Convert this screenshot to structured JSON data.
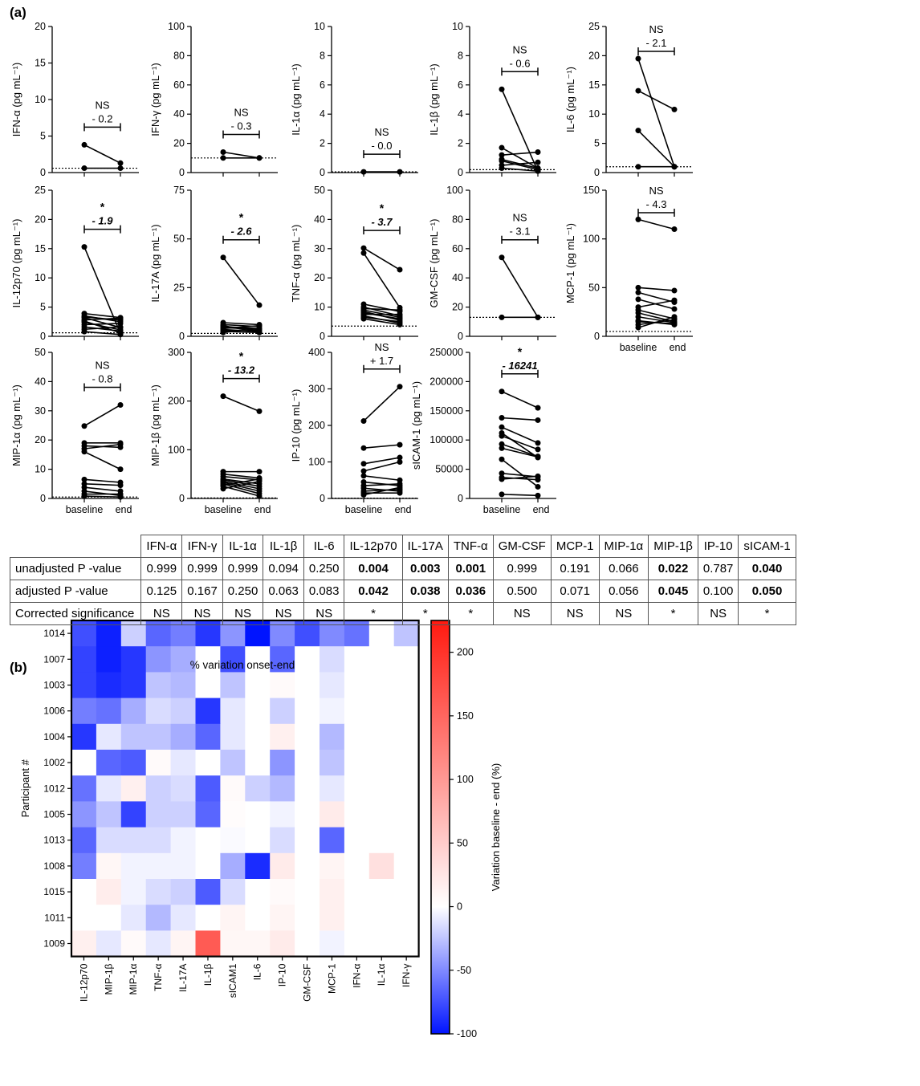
{
  "panel_a_label": "(a)",
  "panel_b_label": "(b)",
  "chart_data": [
    {
      "type": "scatter",
      "id": "ifna",
      "ylabel": "IFN-α (pg mL⁻¹)",
      "ylim": [
        0,
        20
      ],
      "yticks": [
        0,
        5,
        10,
        15,
        20
      ],
      "lod": 0.6,
      "sig": "NS",
      "diff": "- 0.2",
      "bold": false,
      "pairs": [
        [
          3.8,
          1.3
        ],
        [
          0.6,
          0.6
        ]
      ]
    },
    {
      "type": "scatter",
      "id": "ifng",
      "ylabel": "IFN-γ (pg mL⁻¹)",
      "ylim": [
        0,
        100
      ],
      "yticks": [
        0,
        20,
        40,
        60,
        80,
        100
      ],
      "lod": 10,
      "sig": "NS",
      "diff": "- 0.3",
      "bold": false,
      "pairs": [
        [
          14,
          10
        ],
        [
          10,
          10
        ]
      ]
    },
    {
      "type": "scatter",
      "id": "il1a",
      "ylabel": "IL-1α (pg mL⁻¹)",
      "ylim": [
        0,
        10
      ],
      "yticks": [
        0,
        2,
        4,
        6,
        8,
        10
      ],
      "lod": 0.05,
      "sig": "NS",
      "diff": "- 0.0",
      "bold": false,
      "pairs": [
        [
          0.05,
          0.05
        ]
      ]
    },
    {
      "type": "scatter",
      "id": "il1b",
      "ylabel": "IL-1β (pg mL⁻¹)",
      "ylim": [
        0,
        10
      ],
      "yticks": [
        0,
        2,
        4,
        6,
        8,
        10
      ],
      "lod": 0.2,
      "sig": "NS",
      "diff": "- 0.6",
      "bold": false,
      "pairs": [
        [
          5.7,
          0.1
        ],
        [
          1.7,
          0.3
        ],
        [
          1.2,
          1.4
        ],
        [
          0.8,
          0.2
        ],
        [
          0.5,
          0.7
        ],
        [
          0.3,
          0.1
        ],
        [
          0.9,
          0.3
        ]
      ]
    },
    {
      "type": "scatter",
      "id": "il6",
      "ylabel": "IL-6 (pg mL⁻¹)",
      "ylim": [
        0,
        25
      ],
      "yticks": [
        0,
        5,
        10,
        15,
        20,
        25
      ],
      "lod": 1,
      "sig": "NS",
      "diff": "- 2.1",
      "bold": false,
      "pairs": [
        [
          19.5,
          1
        ],
        [
          14,
          10.8
        ],
        [
          7.2,
          1
        ],
        [
          1,
          1
        ]
      ]
    },
    {
      "type": "scatter",
      "id": "il12",
      "ylabel": "IL-12p70 (pg mL⁻¹)",
      "ylim": [
        0,
        25
      ],
      "yticks": [
        0,
        5,
        10,
        15,
        20,
        25
      ],
      "lod": 0.6,
      "sig": "*",
      "diff": "- 1.9",
      "bold": true,
      "pairs": [
        [
          15.3,
          0.5
        ],
        [
          3.9,
          3.2
        ],
        [
          3.5,
          2.5
        ],
        [
          3.2,
          1.5
        ],
        [
          2.8,
          3.1
        ],
        [
          2.4,
          1.1
        ],
        [
          2,
          2.2
        ],
        [
          1.6,
          0.9
        ],
        [
          1.2,
          1.6
        ],
        [
          0.8,
          0.3
        ],
        [
          3.3,
          2.8
        ],
        [
          2.6,
          0.6
        ]
      ]
    },
    {
      "type": "scatter",
      "id": "il17a",
      "ylabel": "IL-17A (pg mL⁻¹)",
      "ylim": [
        0,
        75
      ],
      "yticks": [
        0,
        25,
        50,
        75
      ],
      "lod": 1.5,
      "sig": "*",
      "diff": "- 2.6",
      "bold": true,
      "pairs": [
        [
          40.5,
          16
        ],
        [
          7,
          6
        ],
        [
          6,
          5
        ],
        [
          5,
          4
        ],
        [
          4.5,
          3.5
        ],
        [
          4,
          5.5
        ],
        [
          3.5,
          2.5
        ],
        [
          3,
          3
        ],
        [
          2.5,
          2
        ],
        [
          2,
          4
        ],
        [
          5.5,
          2
        ]
      ]
    },
    {
      "type": "scatter",
      "id": "tnfa",
      "ylabel": "TNF-α (pg mL⁻¹)",
      "ylim": [
        0,
        50
      ],
      "yticks": [
        0,
        10,
        20,
        30,
        40,
        50
      ],
      "lod": 3.5,
      "sig": "*",
      "diff": "- 3.7",
      "bold": true,
      "pairs": [
        [
          30.2,
          22.8
        ],
        [
          28.5,
          9.8
        ],
        [
          11,
          8.5
        ],
        [
          10,
          7
        ],
        [
          9.5,
          9
        ],
        [
          9,
          6.5
        ],
        [
          8.5,
          5.5
        ],
        [
          8,
          6
        ],
        [
          7,
          4.5
        ],
        [
          6.5,
          5
        ],
        [
          6,
          4
        ],
        [
          7.5,
          7.5
        ]
      ]
    },
    {
      "type": "scatter",
      "id": "gmcsf",
      "ylabel": "GM-CSF (pg mL⁻¹)",
      "ylim": [
        0,
        100
      ],
      "yticks": [
        0,
        20,
        40,
        60,
        80,
        100
      ],
      "lod": 13,
      "sig": "NS",
      "diff": "- 3.1",
      "bold": false,
      "pairs": [
        [
          54,
          13
        ],
        [
          13,
          13
        ]
      ]
    },
    {
      "type": "scatter",
      "id": "mcp1",
      "ylabel": "MCP-1 (pg mL⁻¹)",
      "ylim": [
        0,
        150
      ],
      "yticks": [
        0,
        50,
        100,
        150
      ],
      "lod": 5,
      "sig": "NS",
      "diff": "- 4.3",
      "bold": false,
      "pairs": [
        [
          120,
          110
        ],
        [
          50,
          47
        ],
        [
          45,
          35
        ],
        [
          38,
          28
        ],
        [
          30,
          37
        ],
        [
          27,
          18
        ],
        [
          24,
          15
        ],
        [
          20,
          14
        ],
        [
          15,
          13
        ],
        [
          12,
          17
        ],
        [
          9,
          20
        ],
        [
          16,
          12
        ]
      ],
      "xlabels": [
        "baseline",
        "end"
      ]
    },
    {
      "type": "scatter",
      "id": "mip1a",
      "ylabel": "MIP-1α (pg mL⁻¹)",
      "ylim": [
        0,
        50
      ],
      "yticks": [
        0,
        10,
        20,
        30,
        40,
        50
      ],
      "lod": 0.5,
      "sig": "NS",
      "diff": "- 0.8",
      "bold": false,
      "pairs": [
        [
          24.8,
          32
        ],
        [
          19,
          19
        ],
        [
          18,
          17.5
        ],
        [
          17,
          18.5
        ],
        [
          16,
          10
        ],
        [
          6.5,
          5.5
        ],
        [
          5,
          4.5
        ],
        [
          3.8,
          2.5
        ],
        [
          2.5,
          1
        ],
        [
          1.5,
          1.5
        ],
        [
          0.8,
          0.5
        ]
      ],
      "xlabels": [
        "baseline",
        "end"
      ]
    },
    {
      "type": "scatter",
      "id": "mip1b",
      "ylabel": "MIP-1β (pg mL⁻¹)",
      "ylim": [
        0,
        300
      ],
      "yticks": [
        0,
        100,
        200,
        300
      ],
      "lod": 1,
      "sig": "*",
      "diff": "- 13.2",
      "bold": true,
      "pairs": [
        [
          210,
          179
        ],
        [
          55,
          55
        ],
        [
          50,
          42
        ],
        [
          45,
          38
        ],
        [
          40,
          30
        ],
        [
          38,
          25
        ],
        [
          35,
          20
        ],
        [
          33,
          15
        ],
        [
          30,
          10
        ],
        [
          27,
          40
        ],
        [
          25,
          5
        ],
        [
          20,
          35
        ]
      ],
      "xlabels": [
        "baseline",
        "end"
      ]
    },
    {
      "type": "scatter",
      "id": "ip10",
      "ylabel": "IP-10 (pg mL⁻¹)",
      "ylim": [
        0,
        400
      ],
      "yticks": [
        0,
        100,
        200,
        300,
        400
      ],
      "lod": 1,
      "sig": "NS",
      "diff": "+ 1.7",
      "bold": false,
      "pairs": [
        [
          212,
          306
        ],
        [
          138,
          147
        ],
        [
          95,
          112
        ],
        [
          75,
          100
        ],
        [
          62,
          50
        ],
        [
          45,
          35
        ],
        [
          35,
          40
        ],
        [
          28,
          20
        ],
        [
          20,
          25
        ],
        [
          15,
          15
        ],
        [
          10,
          30
        ]
      ],
      "xlabels": [
        "baseline",
        "end"
      ]
    },
    {
      "type": "scatter",
      "id": "sicam",
      "ylabel": "sICAM-1 (pg mL⁻¹)",
      "ylim": [
        0,
        250000
      ],
      "yticks": [
        0,
        50000,
        100000,
        150000,
        200000,
        250000
      ],
      "lod": 0,
      "sig": "*",
      "diff": "- 16241",
      "bold": true,
      "pairs": [
        [
          183000,
          155000
        ],
        [
          138000,
          134000
        ],
        [
          122000,
          95000
        ],
        [
          112000,
          70000
        ],
        [
          107000,
          84000
        ],
        [
          93000,
          72000
        ],
        [
          86000,
          71000
        ],
        [
          67000,
          20000
        ],
        [
          43000,
          37000
        ],
        [
          36000,
          32000
        ],
        [
          33000,
          38000
        ],
        [
          7000,
          5000
        ]
      ],
      "xlabels": [
        "baseline",
        "end"
      ]
    },
    {
      "type": "heatmap",
      "id": "heat",
      "title": "% variation onset-end",
      "ylabel": "Participant #",
      "colorbar_label": "Variation baseline - end (%)",
      "colorbar_range": [
        -100,
        225
      ],
      "colorbar_ticks": [
        200,
        150,
        100,
        50,
        0,
        -50,
        -100
      ],
      "columns": [
        "IL-12p70",
        "MIP-1β",
        "MIP-1α",
        "TNF-α",
        "IL-17A",
        "IL-1β",
        "sICAM1",
        "IL-6",
        "IP-10",
        "GM-CSF",
        "MCP-1",
        "IFN-α",
        "IL-1α",
        "IFN-γ"
      ],
      "rows": [
        "1014",
        "1007",
        "1003",
        "1006",
        "1004",
        "1002",
        "1012",
        "1005",
        "1013",
        "1008",
        "1015",
        "1011",
        "1009"
      ],
      "values": [
        [
          -75,
          -95,
          -20,
          -65,
          -55,
          -85,
          -45,
          -100,
          -50,
          -75,
          -50,
          -60,
          0,
          -25
        ],
        [
          -80,
          -95,
          -85,
          -45,
          -35,
          0,
          -75,
          0,
          -65,
          0,
          -15,
          0,
          0,
          0
        ],
        [
          -80,
          -90,
          -85,
          -25,
          -30,
          0,
          -25,
          0,
          5,
          0,
          -10,
          0,
          0,
          0
        ],
        [
          -55,
          -60,
          -35,
          -15,
          -20,
          -85,
          -10,
          0,
          -20,
          0,
          -5,
          0,
          0,
          0
        ],
        [
          -85,
          -10,
          -25,
          -25,
          -35,
          -65,
          -10,
          0,
          15,
          0,
          -30,
          0,
          0,
          0
        ],
        [
          0,
          -65,
          -70,
          5,
          -10,
          0,
          -25,
          0,
          -45,
          0,
          -25,
          0,
          0,
          0
        ],
        [
          -60,
          -10,
          15,
          -20,
          -15,
          -70,
          5,
          -20,
          -30,
          0,
          -10,
          0,
          0,
          0
        ],
        [
          -45,
          -25,
          -80,
          -20,
          -20,
          -65,
          3,
          0,
          -5,
          0,
          20,
          0,
          0,
          0
        ],
        [
          -65,
          -15,
          -15,
          -15,
          -5,
          0,
          -2,
          0,
          -15,
          0,
          -65,
          0,
          0,
          0
        ],
        [
          -55,
          8,
          -5,
          -5,
          -5,
          0,
          -35,
          -90,
          20,
          0,
          10,
          0,
          30,
          0
        ],
        [
          0,
          18,
          -5,
          -15,
          -20,
          -70,
          -15,
          0,
          5,
          0,
          15,
          0,
          0,
          0
        ],
        [
          0,
          0,
          -10,
          -30,
          -10,
          0,
          10,
          0,
          10,
          0,
          15,
          0,
          0,
          0
        ],
        [
          15,
          -10,
          5,
          -10,
          10,
          160,
          8,
          8,
          20,
          0,
          -5,
          0,
          0,
          0
        ]
      ]
    }
  ],
  "pvalue_table": {
    "columns": [
      "IFN-α",
      "IFN-γ",
      "IL-1α",
      "IL-1β",
      "IL-6",
      "IL-12p70",
      "IL-17A",
      "TNF-α",
      "GM-CSF",
      "MCP-1",
      "MIP-1α",
      "MIP-1β",
      "IP-10",
      "sICAM-1"
    ],
    "rows": [
      {
        "label": "unadjusted P -value",
        "values": [
          "0.999",
          "0.999",
          "0.999",
          "0.094",
          "0.250",
          "0.004",
          "0.003",
          "0.001",
          "0.999",
          "0.191",
          "0.066",
          "0.022",
          "0.787",
          "0.040"
        ]
      },
      {
        "label": "adjusted P -value",
        "values": [
          "0.125",
          "0.167",
          "0.250",
          "0.063",
          "0.083",
          "0.042",
          "0.038",
          "0.036",
          "0.500",
          "0.071",
          "0.056",
          "0.045",
          "0.100",
          "0.050"
        ]
      },
      {
        "label": "Corrected significance",
        "values": [
          "NS",
          "NS",
          "NS",
          "NS",
          "NS",
          "*",
          "*",
          "*",
          "NS",
          "NS",
          "NS",
          "*",
          "NS",
          "*"
        ]
      }
    ],
    "bold_columns": [
      5,
      6,
      7,
      11,
      13
    ]
  }
}
